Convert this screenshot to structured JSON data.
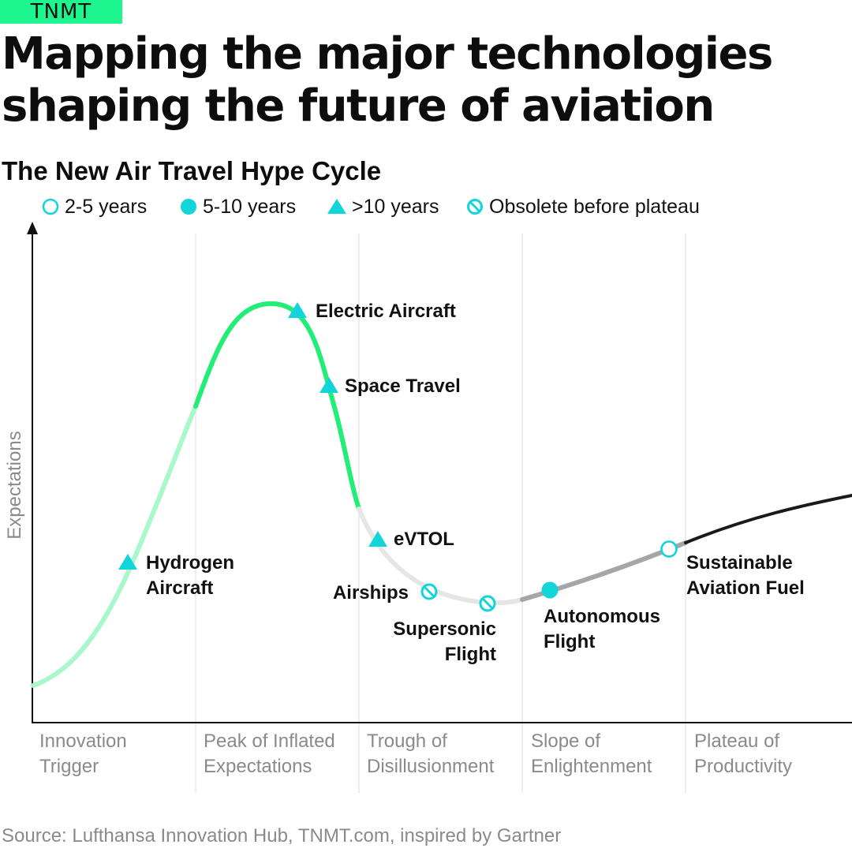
{
  "brand": {
    "name": "TNMT"
  },
  "header": {
    "title": "Mapping the major technologies shaping the future of aviation",
    "subtitle": "The New Air Travel Hype Cycle"
  },
  "legend": [
    {
      "label": "2-5 years",
      "marker": "open-circle-icon"
    },
    {
      "label": "5-10 years",
      "marker": "filled-circle-icon"
    },
    {
      "label": ">10 years",
      "marker": "triangle-icon"
    },
    {
      "label": "Obsolete before plateau",
      "marker": "obsolete-icon"
    }
  ],
  "colors": {
    "brand": "#1df58f",
    "marker": "#11d5d9",
    "curve_light_green": "#a8f8cc",
    "curve_green": "#22ee77",
    "curve_light_gray": "#e6e6e6",
    "curve_gray": "#a6a6a6",
    "curve_dark": "#1a1a1a"
  },
  "chart_data": {
    "type": "line",
    "title": "The New Air Travel Hype Cycle",
    "ylabel": "Expectations",
    "xlabel": "",
    "phases": [
      [
        "Innovation",
        "Trigger"
      ],
      [
        "Peak of Inflated",
        "Expectations"
      ],
      [
        "Trough of",
        "Disillusionment"
      ],
      [
        "Slope of",
        "Enlightenment"
      ],
      [
        "Plateau of",
        "Productivity"
      ]
    ],
    "points": [
      {
        "label": [
          "Hydrogen",
          "Aircraft"
        ],
        "category": ">10 years",
        "marker": "triangle",
        "phase": "Innovation Trigger"
      },
      {
        "label": [
          "Electric Aircraft"
        ],
        "category": ">10 years",
        "marker": "triangle",
        "phase": "Peak of Inflated Expectations"
      },
      {
        "label": [
          "Space Travel"
        ],
        "category": ">10 years",
        "marker": "triangle",
        "phase": "Peak of Inflated Expectations"
      },
      {
        "label": [
          "eVTOL"
        ],
        "category": ">10 years",
        "marker": "triangle",
        "phase": "Trough of Disillusionment"
      },
      {
        "label": [
          "Airships"
        ],
        "category": "Obsolete before plateau",
        "marker": "obsolete",
        "phase": "Trough of Disillusionment"
      },
      {
        "label": [
          "Supersonic",
          "Flight"
        ],
        "category": "Obsolete before plateau",
        "marker": "obsolete",
        "phase": "Trough of Disillusionment"
      },
      {
        "label": [
          "Autonomous",
          "Flight"
        ],
        "category": "5-10 years",
        "marker": "filled-circle",
        "phase": "Slope of Enlightenment"
      },
      {
        "label": [
          "Sustainable",
          "Aviation Fuel"
        ],
        "category": "2-5 years",
        "marker": "open-circle",
        "phase": "Slope of Enlightenment"
      }
    ],
    "grid": "vertical phase dividers",
    "legend_position": "top-left"
  },
  "footer": {
    "source": "Source: Lufthansa Innovation Hub, TNMT.com, inspired by Gartner"
  }
}
